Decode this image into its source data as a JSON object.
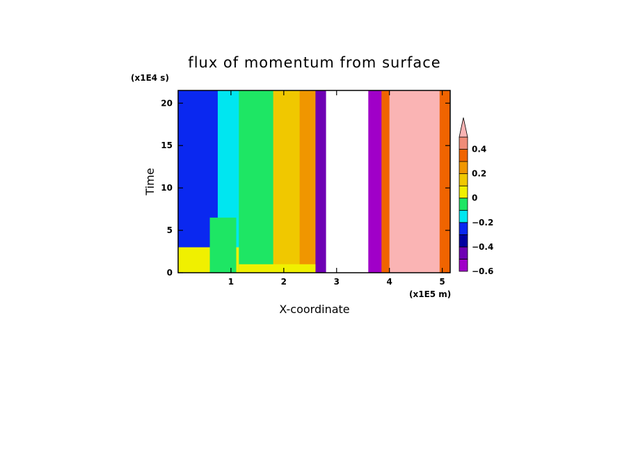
{
  "chart_data": {
    "type": "heatmap",
    "title": "flux of momentum from surface",
    "xlabel": "X-coordinate",
    "ylabel": "Time",
    "x_unit": "(x1E5 m)",
    "y_unit": "(x1E4 s)",
    "xlim": [
      0,
      5.15
    ],
    "ylim": [
      0,
      21.5
    ],
    "x_ticks": [
      "1",
      "2",
      "3",
      "4",
      "5"
    ],
    "y_ticks": [
      "0",
      "5",
      "10",
      "15",
      "20"
    ],
    "colorbar": {
      "tick_labels": [
        "0.4",
        "0.2",
        "0",
        "−0.2",
        "−0.4",
        "−0.6"
      ],
      "levels": [
        {
          "lo": -0.6,
          "hi": -0.5,
          "color": "#a000c8"
        },
        {
          "lo": -0.5,
          "hi": -0.4,
          "color": "#6e00b4"
        },
        {
          "lo": -0.4,
          "hi": -0.3,
          "color": "#0000a0"
        },
        {
          "lo": -0.3,
          "hi": -0.2,
          "color": "#0a28f0"
        },
        {
          "lo": -0.2,
          "hi": -0.1,
          "color": "#00e6f0"
        },
        {
          "lo": -0.1,
          "hi": 0.0,
          "color": "#1ee664"
        },
        {
          "lo": 0.0,
          "hi": 0.1,
          "color": "#f0f000"
        },
        {
          "lo": 0.1,
          "hi": 0.2,
          "color": "#f0c800"
        },
        {
          "lo": 0.2,
          "hi": 0.3,
          "color": "#f09600"
        },
        {
          "lo": 0.3,
          "hi": 0.4,
          "color": "#f06400"
        },
        {
          "lo": 0.4,
          "hi": 0.5,
          "color": "#f08c78"
        },
        {
          "lo": 0.5,
          "hi": null,
          "color": "#fab4b4"
        }
      ]
    },
    "bands": [
      {
        "x0": 0.0,
        "x1": 0.12,
        "value": -0.25,
        "color": "#0a28f0"
      },
      {
        "x0": 0.12,
        "x1": 0.75,
        "value": -0.25,
        "color": "#0a28f0"
      },
      {
        "x0": 0.75,
        "x1": 1.15,
        "value": -0.15,
        "color": "#00e6f0"
      },
      {
        "x0": 1.15,
        "x1": 1.8,
        "value": -0.05,
        "color": "#1ee664"
      },
      {
        "x0": 1.8,
        "x1": 2.3,
        "value": 0.15,
        "color": "#f0c800"
      },
      {
        "x0": 2.3,
        "x1": 2.6,
        "value": 0.25,
        "color": "#f09600"
      },
      {
        "x0": 2.6,
        "x1": 2.8,
        "value": -0.45,
        "color": "#6e00b4"
      },
      {
        "x0": 2.8,
        "x1": 3.6,
        "value": -0.7,
        "color": "#ffffff"
      },
      {
        "x0": 3.6,
        "x1": 3.85,
        "value": -0.55,
        "color": "#a000c8"
      },
      {
        "x0": 3.85,
        "x1": 4.0,
        "value": 0.35,
        "color": "#f06400"
      },
      {
        "x0": 4.0,
        "x1": 4.95,
        "value": 0.55,
        "color": "#fab4b4"
      },
      {
        "x0": 4.95,
        "x1": 5.15,
        "value": 0.35,
        "color": "#f06400"
      }
    ],
    "lower_region": [
      {
        "x0": 0.0,
        "x1": 1.15,
        "y1": 3.0,
        "value": 0.05,
        "color": "#f0f000"
      },
      {
        "x0": 0.6,
        "x1": 1.1,
        "y1": 6.5,
        "value": -0.05,
        "color": "#1ee664"
      },
      {
        "x0": 1.15,
        "x1": 2.6,
        "y1": 1.0,
        "value": 0.05,
        "color": "#f0f000"
      }
    ]
  }
}
